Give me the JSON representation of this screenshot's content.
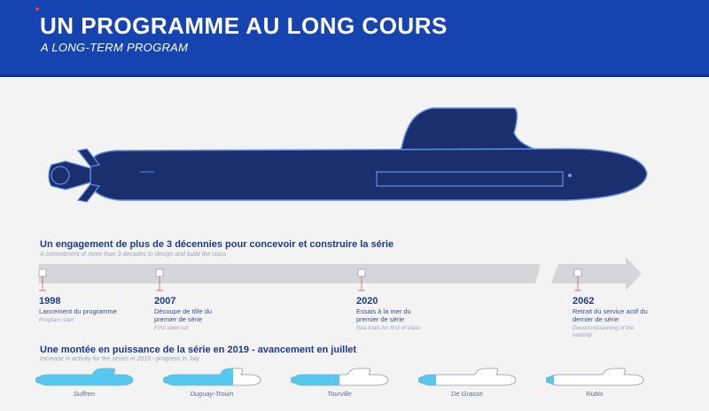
{
  "header": {
    "title": "UN PROGRAMME AU LONG COURS",
    "subtitle": "A LONG-TERM PROGRAM"
  },
  "timeline_section": {
    "heading": "Un engagement de plus de 3 décennies pour concevoir et construire la série",
    "subheading": "A commitment of more than 3 decades to design and build the class"
  },
  "milestones": [
    {
      "year": "1998",
      "fr": "Lancement du programme",
      "en": "Program start"
    },
    {
      "year": "2007",
      "fr": "Découpe de tôle du premier de série",
      "en": "First steel cut"
    },
    {
      "year": "2020",
      "fr": "Essais à la mer du premier de série",
      "en": "Sea trials for first of class"
    },
    {
      "year": "2062",
      "fr": "Retrait du service actif du dernier de série",
      "en": "Decommissioning of the lastship"
    }
  ],
  "ramp_section": {
    "heading": "Une montée en puissance de la série en 2019 - avancement en juillet",
    "subheading": "Increase in activity for the series in 2019 - progress in July"
  },
  "submarines": [
    {
      "name": "Suffren",
      "progress": 1.0
    },
    {
      "name": "Duguay-Trouin",
      "progress": 0.72
    },
    {
      "name": "Tourville",
      "progress": 0.5
    },
    {
      "name": "De Grasse",
      "progress": 0.18
    },
    {
      "name": "Rubis",
      "progress": 0.08
    }
  ],
  "colors": {
    "brand_blue": "#1544b0",
    "hull_navy": "#1b2f6e",
    "progress_cyan": "#56c8ef",
    "arrow_grey": "#d4d6da",
    "marker_red": "#d35b6b"
  }
}
